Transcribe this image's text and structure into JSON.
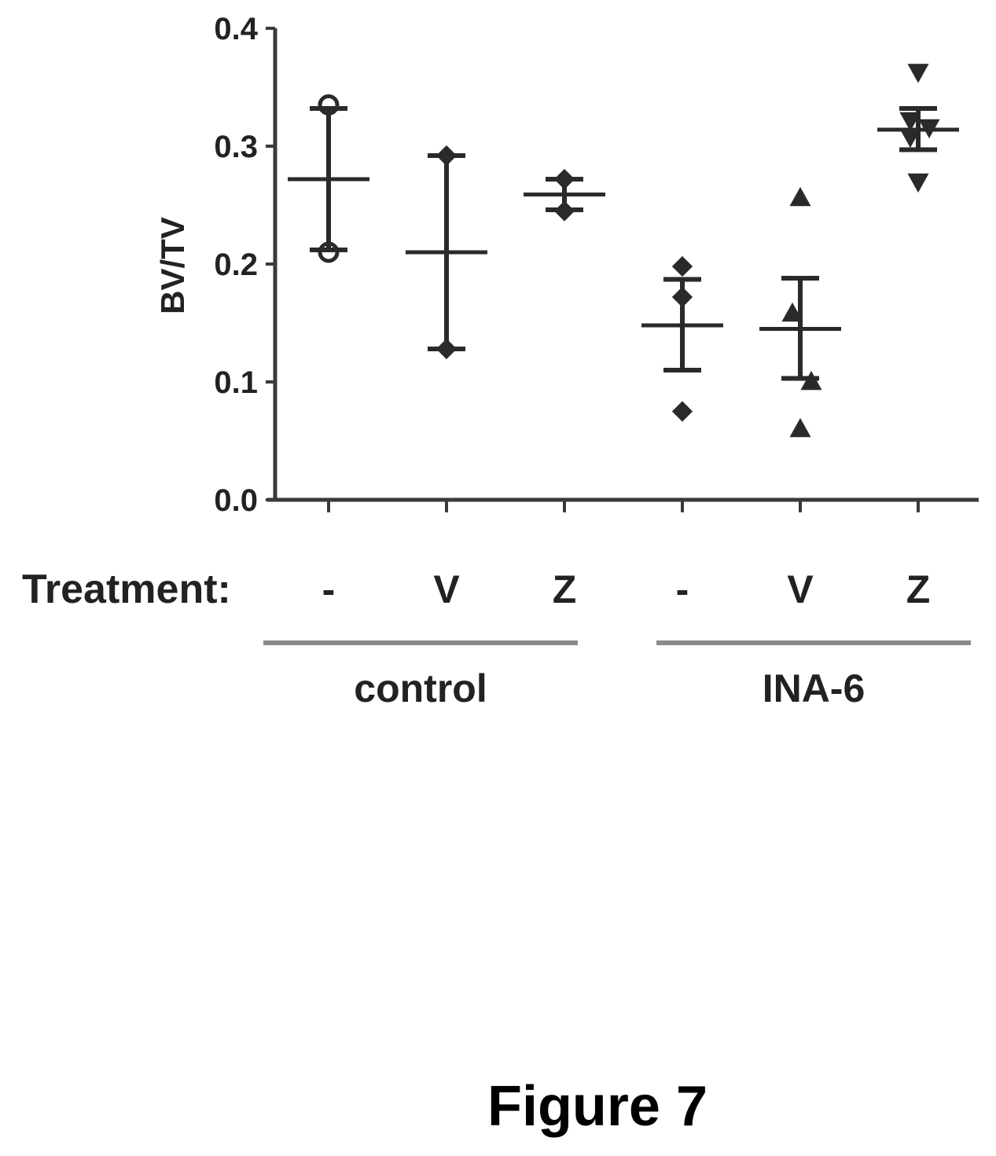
{
  "figure_caption": "Figure 7",
  "chart_data": {
    "type": "scatter",
    "title": "",
    "xlabel": "",
    "ylabel": "BV/TV",
    "ylim": [
      0.0,
      0.4
    ],
    "yticks": [
      "0.0",
      "0.1",
      "0.2",
      "0.3",
      "0.4"
    ],
    "treatment_row_label": "Treatment:",
    "categories": [
      "-",
      "V",
      "Z",
      "-",
      "V",
      "Z"
    ],
    "groups": [
      {
        "label": "control",
        "category_indices": [
          0,
          1,
          2
        ]
      },
      {
        "label": "INA-6",
        "category_indices": [
          3,
          4,
          5
        ]
      }
    ],
    "series": [
      {
        "group": "control",
        "treatment": "-",
        "marker": "open-circle",
        "points": [
          0.335,
          0.21
        ],
        "mean": 0.272,
        "error_upper": 0.332,
        "error_lower": 0.212
      },
      {
        "group": "control",
        "treatment": "V",
        "marker": "diamond",
        "points": [
          0.292,
          0.128
        ],
        "mean": 0.21,
        "error_upper": 0.292,
        "error_lower": 0.128
      },
      {
        "group": "control",
        "treatment": "Z",
        "marker": "diamond",
        "points": [
          0.272,
          0.245
        ],
        "mean": 0.259,
        "error_upper": 0.272,
        "error_lower": 0.246
      },
      {
        "group": "INA-6",
        "treatment": "-",
        "marker": "diamond",
        "points": [
          0.198,
          0.172,
          0.075
        ],
        "mean": 0.148,
        "error_upper": 0.187,
        "error_lower": 0.11
      },
      {
        "group": "INA-6",
        "treatment": "V",
        "marker": "triangle-up",
        "points": [
          0.256,
          0.158,
          0.1,
          0.06
        ],
        "mean": 0.145,
        "error_upper": 0.188,
        "error_lower": 0.103
      },
      {
        "group": "INA-6",
        "treatment": "Z",
        "marker": "triangle-down",
        "points": [
          0.363,
          0.322,
          0.316,
          0.308,
          0.27
        ],
        "mean": 0.314,
        "error_upper": 0.332,
        "error_lower": 0.297
      }
    ]
  }
}
